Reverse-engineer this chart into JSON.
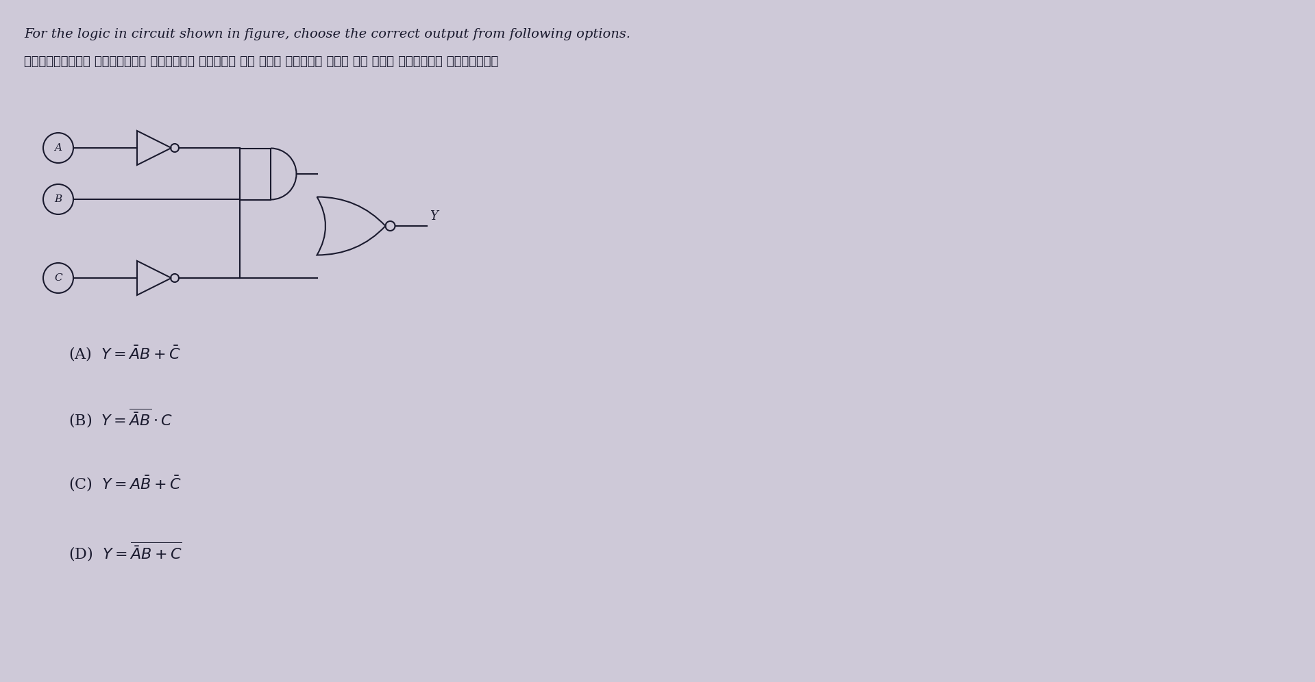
{
  "title_line1": "For the logic in circuit shown in figure, choose the correct output from following options.",
  "title_line2": "प्रदर्शित तार्किक द्वारा परिपथ के लिए निम्न में से सही निर्गत चुनिये।",
  "bg_color": "#cec9d8",
  "text_color": "#1a1a2e",
  "options": [
    "(A)  Y = $\\bar{A}$B + $\\bar{C}$",
    "(B)  Y = $\\overline{\\bar{A}B}$ · C",
    "(C)  Y = A$\\bar{B}$ + $\\bar{C}$",
    "(D)  Y = $\\overline{\\bar{A}B + C}$"
  ]
}
